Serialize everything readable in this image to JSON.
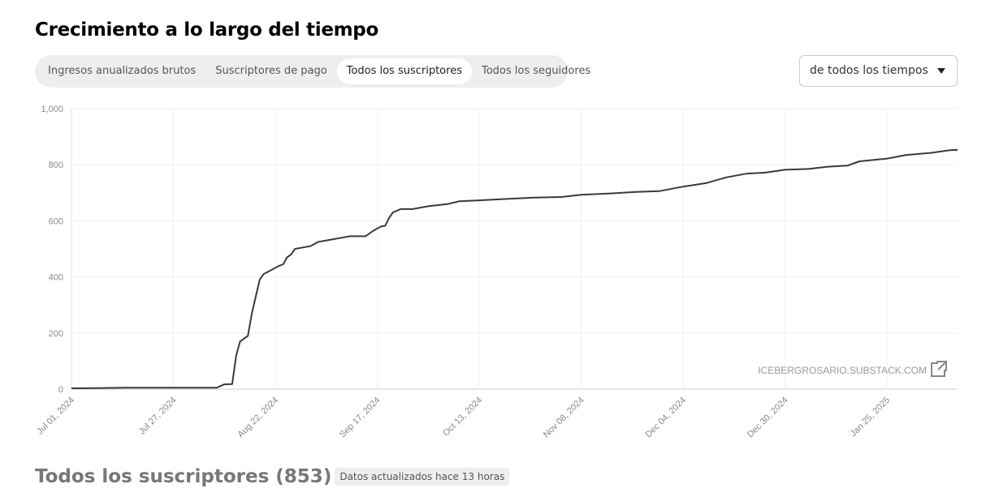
{
  "header": {
    "title": "Crecimiento a lo largo del tiempo"
  },
  "tabs": [
    {
      "label": "Ingresos anualizados brutos",
      "selected": false
    },
    {
      "label": "Suscriptores de pago",
      "selected": false
    },
    {
      "label": "Todos los suscriptores",
      "selected": true
    },
    {
      "label": "Todos los seguidores",
      "selected": false
    }
  ],
  "dropdown": {
    "label": "de todos los tiempos"
  },
  "chart_data": {
    "type": "line",
    "color": "#3a3a3a",
    "grid": true,
    "watermark": "ICEBERGROSARIO.SUBSTACK.COM",
    "x": [
      "2024-07-01",
      "2024-07-15",
      "2024-08-07",
      "2024-08-09",
      "2024-08-11",
      "2024-08-12",
      "2024-08-13",
      "2024-08-15",
      "2024-08-16",
      "2024-08-18",
      "2024-08-19",
      "2024-08-21",
      "2024-08-23",
      "2024-08-24",
      "2024-08-25",
      "2024-08-26",
      "2024-08-27",
      "2024-08-29",
      "2024-08-31",
      "2024-09-02",
      "2024-09-04",
      "2024-09-06",
      "2024-09-08",
      "2024-09-10",
      "2024-09-12",
      "2024-09-14",
      "2024-09-16",
      "2024-09-18",
      "2024-09-19",
      "2024-09-20",
      "2024-09-21",
      "2024-09-23",
      "2024-09-26",
      "2024-09-30",
      "2024-10-05",
      "2024-10-08",
      "2024-10-13",
      "2024-10-20",
      "2024-10-27",
      "2024-11-03",
      "2024-11-08",
      "2024-11-15",
      "2024-11-22",
      "2024-11-28",
      "2024-12-04",
      "2024-12-10",
      "2024-12-15",
      "2024-12-20",
      "2024-12-25",
      "2024-12-30",
      "2025-01-05",
      "2025-01-10",
      "2025-01-15",
      "2025-01-18",
      "2025-01-25",
      "2025-01-30",
      "2025-02-05",
      "2025-02-10",
      "2025-02-12"
    ],
    "values": [
      3,
      5,
      5,
      17,
      18,
      120,
      170,
      190,
      270,
      390,
      410,
      425,
      440,
      445,
      470,
      480,
      500,
      505,
      510,
      525,
      530,
      535,
      540,
      545,
      545,
      545,
      565,
      580,
      582,
      610,
      630,
      642,
      642,
      652,
      660,
      670,
      673,
      678,
      683,
      685,
      693,
      697,
      703,
      706,
      722,
      735,
      755,
      768,
      772,
      782,
      785,
      793,
      797,
      812,
      822,
      835,
      842,
      852,
      853
    ],
    "xlim": [
      "2024-07-01",
      "2025-02-12"
    ],
    "xticks": [
      {
        "value": "2024-07-01",
        "label": "Jul 01, 2024"
      },
      {
        "value": "2024-07-27",
        "label": "Jul 27, 2024"
      },
      {
        "value": "2024-08-22",
        "label": "Aug 22, 2024"
      },
      {
        "value": "2024-09-17",
        "label": "Sep 17, 2024"
      },
      {
        "value": "2024-10-13",
        "label": "Oct 13, 2024"
      },
      {
        "value": "2024-11-08",
        "label": "Nov 08, 2024"
      },
      {
        "value": "2024-12-04",
        "label": "Dec 04, 2024"
      },
      {
        "value": "2024-12-30",
        "label": "Dec 30, 2024"
      },
      {
        "value": "2025-01-25",
        "label": "Jan 25, 2025"
      }
    ],
    "ylim": [
      0,
      1000
    ],
    "yticks": [
      0,
      200,
      400,
      600,
      800,
      {
        "value": 1000,
        "label": "1,000"
      }
    ]
  },
  "footer": {
    "title": "Todos los suscriptores (853)",
    "note": "Datos actualizados hace 13 horas"
  }
}
